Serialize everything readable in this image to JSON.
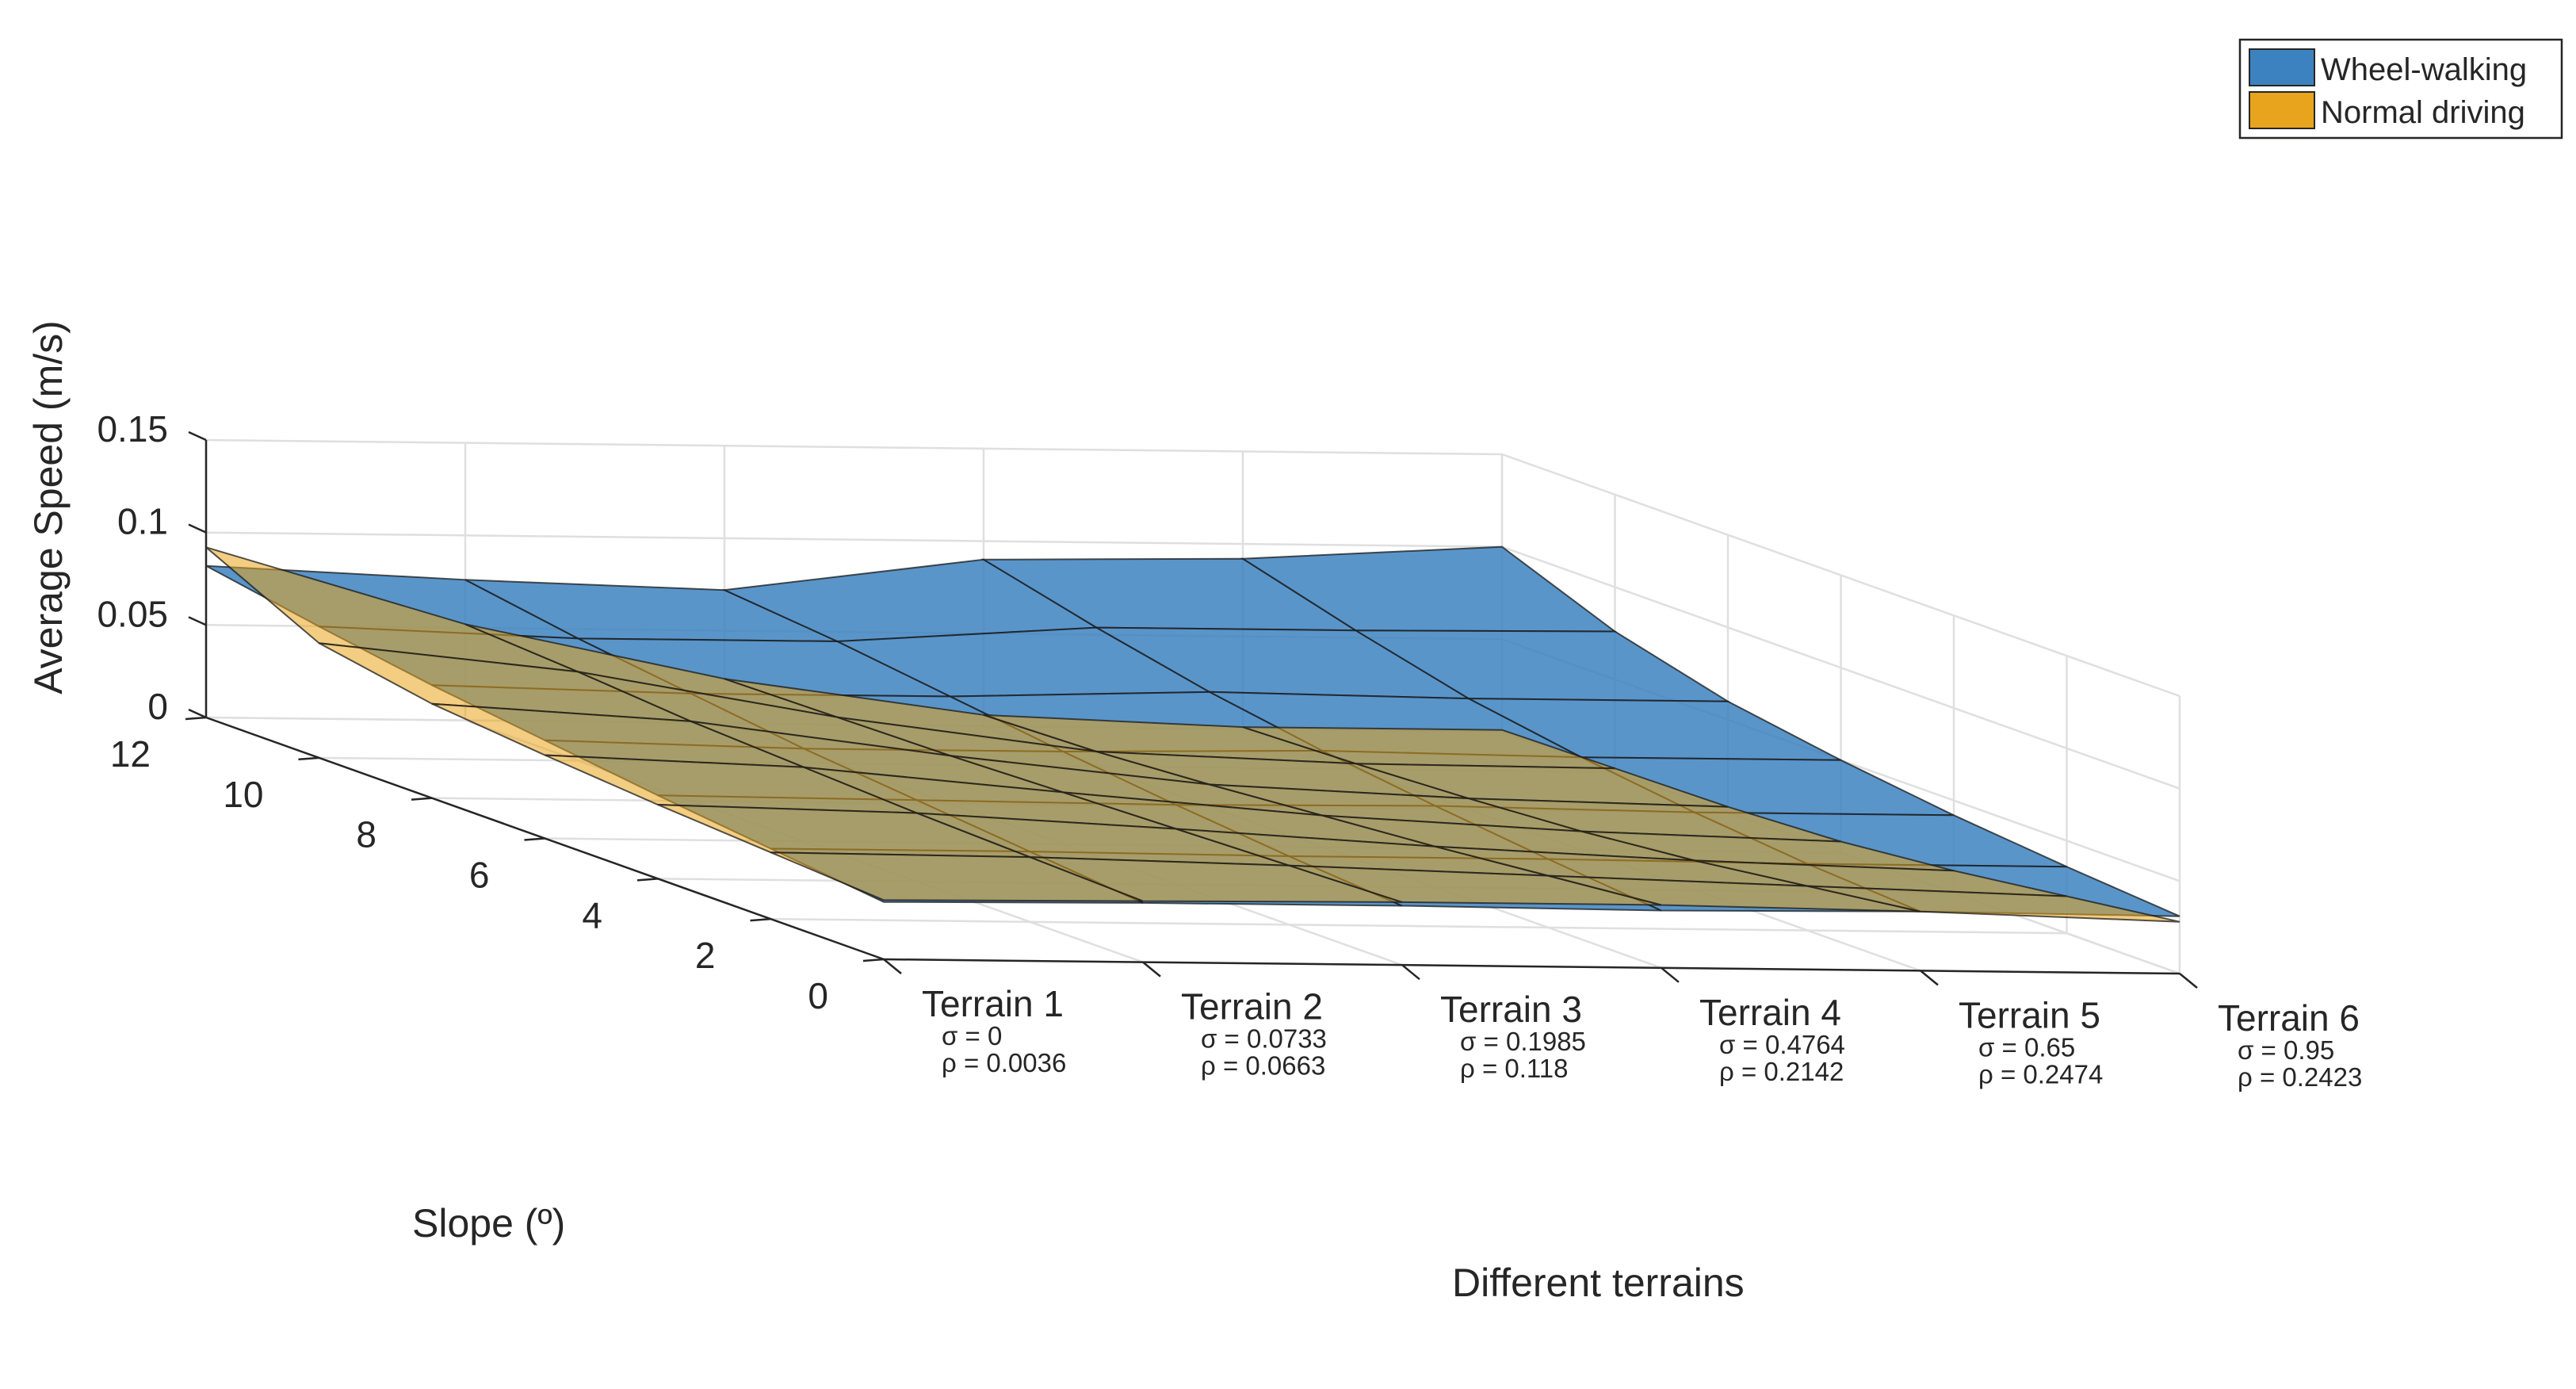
{
  "chart_data": {
    "type": "surface3d",
    "title": "",
    "xlabel": "Different terrains",
    "ylabel": "Slope (º)",
    "zlabel": "Average Speed (m/s)",
    "zlim": [
      0,
      0.15
    ],
    "z_ticks": [
      "0",
      "0.05",
      "0.1",
      "0.15"
    ],
    "slope_ticks": [
      "0",
      "2",
      "4",
      "6",
      "8",
      "10",
      "12"
    ],
    "slopes": [
      0,
      2,
      4,
      6,
      8,
      10,
      12
    ],
    "terrains": [
      {
        "name": "Terrain 1",
        "sigma": "σ = 0",
        "rho": "ρ = 0.0036"
      },
      {
        "name": "Terrain 2",
        "sigma": "σ = 0.0733",
        "rho": "ρ = 0.0663"
      },
      {
        "name": "Terrain 3",
        "sigma": "σ = 0.1985",
        "rho": "ρ = 0.118"
      },
      {
        "name": "Terrain 4",
        "sigma": "σ = 0.4764",
        "rho": "ρ = 0.2142"
      },
      {
        "name": "Terrain 5",
        "sigma": "σ = 0.65",
        "rho": "ρ = 0.2474"
      },
      {
        "name": "Terrain 6",
        "sigma": "σ = 0.95",
        "rho": "ρ = 0.2423"
      }
    ],
    "legend": {
      "position": "top-right",
      "entries": [
        "Wheel-walking",
        "Normal driving"
      ]
    },
    "colors": {
      "wheel_walking": "#3d82c0",
      "normal_driving": "#e8a41c"
    },
    "series": [
      {
        "name": "Wheel-walking",
        "note": "rows = terrains 1..6, columns = slope 0,2,...,12",
        "values": [
          [
            0.031,
            0.038,
            0.045,
            0.053,
            0.061,
            0.071,
            0.082
          ],
          [
            0.032,
            0.038,
            0.044,
            0.05,
            0.058,
            0.066,
            0.076
          ],
          [
            0.032,
            0.037,
            0.043,
            0.05,
            0.058,
            0.066,
            0.072
          ],
          [
            0.031,
            0.037,
            0.044,
            0.052,
            0.062,
            0.075,
            0.09
          ],
          [
            0.032,
            0.036,
            0.042,
            0.05,
            0.06,
            0.075,
            0.092
          ],
          [
            0.031,
            0.036,
            0.042,
            0.05,
            0.06,
            0.076,
            0.1
          ]
        ]
      },
      {
        "name": "Normal driving",
        "note": "rows = terrains 1..6, columns = slope 0,2,...,12",
        "values": [
          [
            0.032,
            0.036,
            0.04,
            0.045,
            0.051,
            0.062,
            0.092
          ],
          [
            0.033,
            0.035,
            0.037,
            0.04,
            0.043,
            0.048,
            0.052
          ],
          [
            0.034,
            0.032,
            0.03,
            0.028,
            0.026,
            0.025,
            0.024
          ],
          [
            0.034,
            0.028,
            0.022,
            0.017,
            0.012,
            0.008,
            0.006
          ],
          [
            0.032,
            0.024,
            0.016,
            0.01,
            0.006,
            0.003,
            0.001
          ],
          [
            0.028,
            0.02,
            0.012,
            0.006,
            0.003,
            0.002,
            0.001
          ]
        ]
      }
    ]
  }
}
